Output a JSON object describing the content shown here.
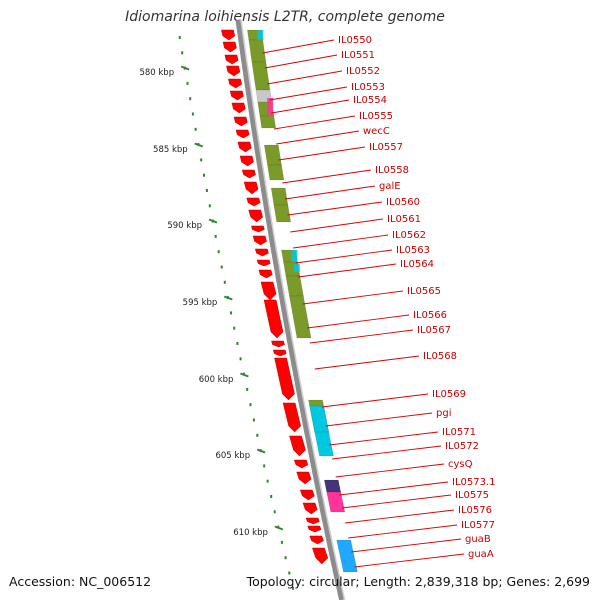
{
  "title": "Idiomarina loihiensis L2TR, complete genome",
  "footer": {
    "accession": "Accession: NC_006512",
    "topology": "Topology: circular; Length: 2,839,318 bp; Genes: 2,699"
  },
  "ticks": [
    {
      "label": "580 kbp",
      "kbp": 580
    },
    {
      "label": "585 kbp",
      "kbp": 585
    },
    {
      "label": "590 kbp",
      "kbp": 590
    },
    {
      "label": "595 kbp",
      "kbp": 595
    },
    {
      "label": "600 kbp",
      "kbp": 600
    },
    {
      "label": "605 kbp",
      "kbp": 605
    },
    {
      "label": "610 kbp",
      "kbp": 610
    }
  ],
  "gene_labels": [
    "IL0550",
    "IL0551",
    "IL0552",
    "IL0553",
    "IL0554",
    "IL0555",
    "wecC",
    "IL0557",
    "IL0558",
    "galE",
    "IL0560",
    "IL0561",
    "IL0562",
    "IL0563",
    "IL0564",
    "IL0565",
    "IL0566",
    "IL0567",
    "IL0568",
    "IL0569",
    "pgi",
    "IL0571",
    "IL0572",
    "cysQ",
    "IL0573.1",
    "IL0575",
    "IL0576",
    "IL0577",
    "guaB",
    "guaA"
  ],
  "colors": {
    "backbone": "#8c8c8c",
    "gene_arrow": "#ff0000",
    "cog_olive": "#7a9a2a",
    "cog_cyan": "#00c8e0",
    "cog_blue": "#1ea8ff",
    "cog_pink": "#ff3399",
    "cog_purple": "#443377",
    "cog_gray": "#c8c8c8",
    "label_text": "#cc0000",
    "connector": "#dd0000",
    "tick_dot": "#2a8a2a"
  }
}
